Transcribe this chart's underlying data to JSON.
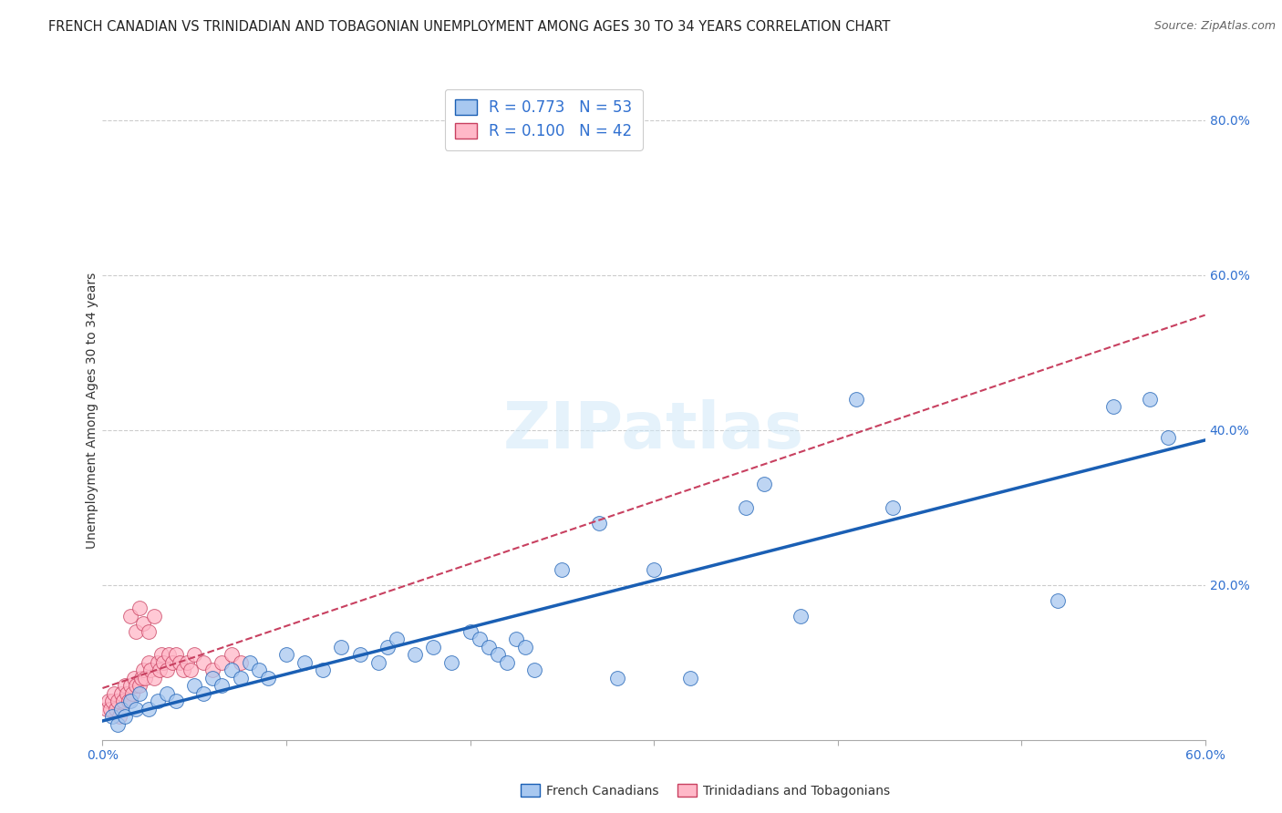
{
  "title": "FRENCH CANADIAN VS TRINIDADIAN AND TOBAGONIAN UNEMPLOYMENT AMONG AGES 30 TO 34 YEARS CORRELATION CHART",
  "source": "Source: ZipAtlas.com",
  "ylabel": "Unemployment Among Ages 30 to 34 years",
  "xlabel": "",
  "watermark": "ZIPatlas",
  "xlim": [
    0.0,
    0.6
  ],
  "ylim": [
    0.0,
    0.85
  ],
  "xticks": [
    0.0,
    0.1,
    0.2,
    0.3,
    0.4,
    0.5,
    0.6
  ],
  "xtick_labels": [
    "0.0%",
    "",
    "",
    "",
    "",
    "",
    "60.0%"
  ],
  "yticks_right": [
    0.0,
    0.2,
    0.4,
    0.6,
    0.8
  ],
  "blue_R": 0.773,
  "blue_N": 53,
  "pink_R": 0.1,
  "pink_N": 42,
  "blue_color": "#a8c8f0",
  "blue_line_color": "#1a5fb4",
  "pink_color": "#ffb8c8",
  "pink_line_color": "#c84060",
  "background_color": "#ffffff",
  "grid_color": "#cccccc",
  "blue_x": [
    0.005,
    0.008,
    0.01,
    0.012,
    0.015,
    0.018,
    0.02,
    0.025,
    0.03,
    0.035,
    0.04,
    0.05,
    0.055,
    0.06,
    0.065,
    0.07,
    0.075,
    0.08,
    0.085,
    0.09,
    0.1,
    0.11,
    0.12,
    0.13,
    0.14,
    0.15,
    0.155,
    0.16,
    0.17,
    0.18,
    0.19,
    0.2,
    0.205,
    0.21,
    0.215,
    0.22,
    0.225,
    0.23,
    0.235,
    0.25,
    0.27,
    0.28,
    0.3,
    0.32,
    0.35,
    0.36,
    0.38,
    0.41,
    0.43,
    0.52,
    0.55,
    0.57,
    0.58
  ],
  "blue_y": [
    0.03,
    0.02,
    0.04,
    0.03,
    0.05,
    0.04,
    0.06,
    0.04,
    0.05,
    0.06,
    0.05,
    0.07,
    0.06,
    0.08,
    0.07,
    0.09,
    0.08,
    0.1,
    0.09,
    0.08,
    0.11,
    0.1,
    0.09,
    0.12,
    0.11,
    0.1,
    0.12,
    0.13,
    0.11,
    0.12,
    0.1,
    0.14,
    0.13,
    0.12,
    0.11,
    0.1,
    0.13,
    0.12,
    0.09,
    0.22,
    0.28,
    0.08,
    0.22,
    0.08,
    0.3,
    0.33,
    0.16,
    0.44,
    0.3,
    0.18,
    0.43,
    0.44,
    0.39
  ],
  "pink_x": [
    0.002,
    0.003,
    0.004,
    0.005,
    0.006,
    0.007,
    0.008,
    0.009,
    0.01,
    0.011,
    0.012,
    0.013,
    0.014,
    0.015,
    0.016,
    0.017,
    0.018,
    0.02,
    0.021,
    0.022,
    0.023,
    0.025,
    0.026,
    0.028,
    0.03,
    0.031,
    0.032,
    0.033,
    0.035,
    0.036,
    0.038,
    0.04,
    0.042,
    0.044,
    0.046,
    0.048,
    0.05,
    0.055,
    0.06,
    0.065,
    0.07,
    0.075
  ],
  "pink_y": [
    0.04,
    0.05,
    0.04,
    0.05,
    0.06,
    0.04,
    0.05,
    0.03,
    0.06,
    0.05,
    0.07,
    0.06,
    0.05,
    0.07,
    0.06,
    0.08,
    0.07,
    0.07,
    0.08,
    0.09,
    0.08,
    0.1,
    0.09,
    0.08,
    0.1,
    0.09,
    0.11,
    0.1,
    0.09,
    0.11,
    0.1,
    0.11,
    0.1,
    0.09,
    0.1,
    0.09,
    0.11,
    0.1,
    0.09,
    0.1,
    0.11,
    0.1
  ],
  "pink_outlier_x": [
    0.015,
    0.018,
    0.02,
    0.022,
    0.025,
    0.028
  ],
  "pink_outlier_y": [
    0.16,
    0.14,
    0.17,
    0.15,
    0.14,
    0.16
  ],
  "title_fontsize": 10.5,
  "source_fontsize": 9,
  "label_fontsize": 10,
  "legend_fontsize": 12,
  "tick_fontsize": 10,
  "watermark_fontsize": 52,
  "watermark_color": "#d0e8f8",
  "watermark_alpha": 0.55
}
